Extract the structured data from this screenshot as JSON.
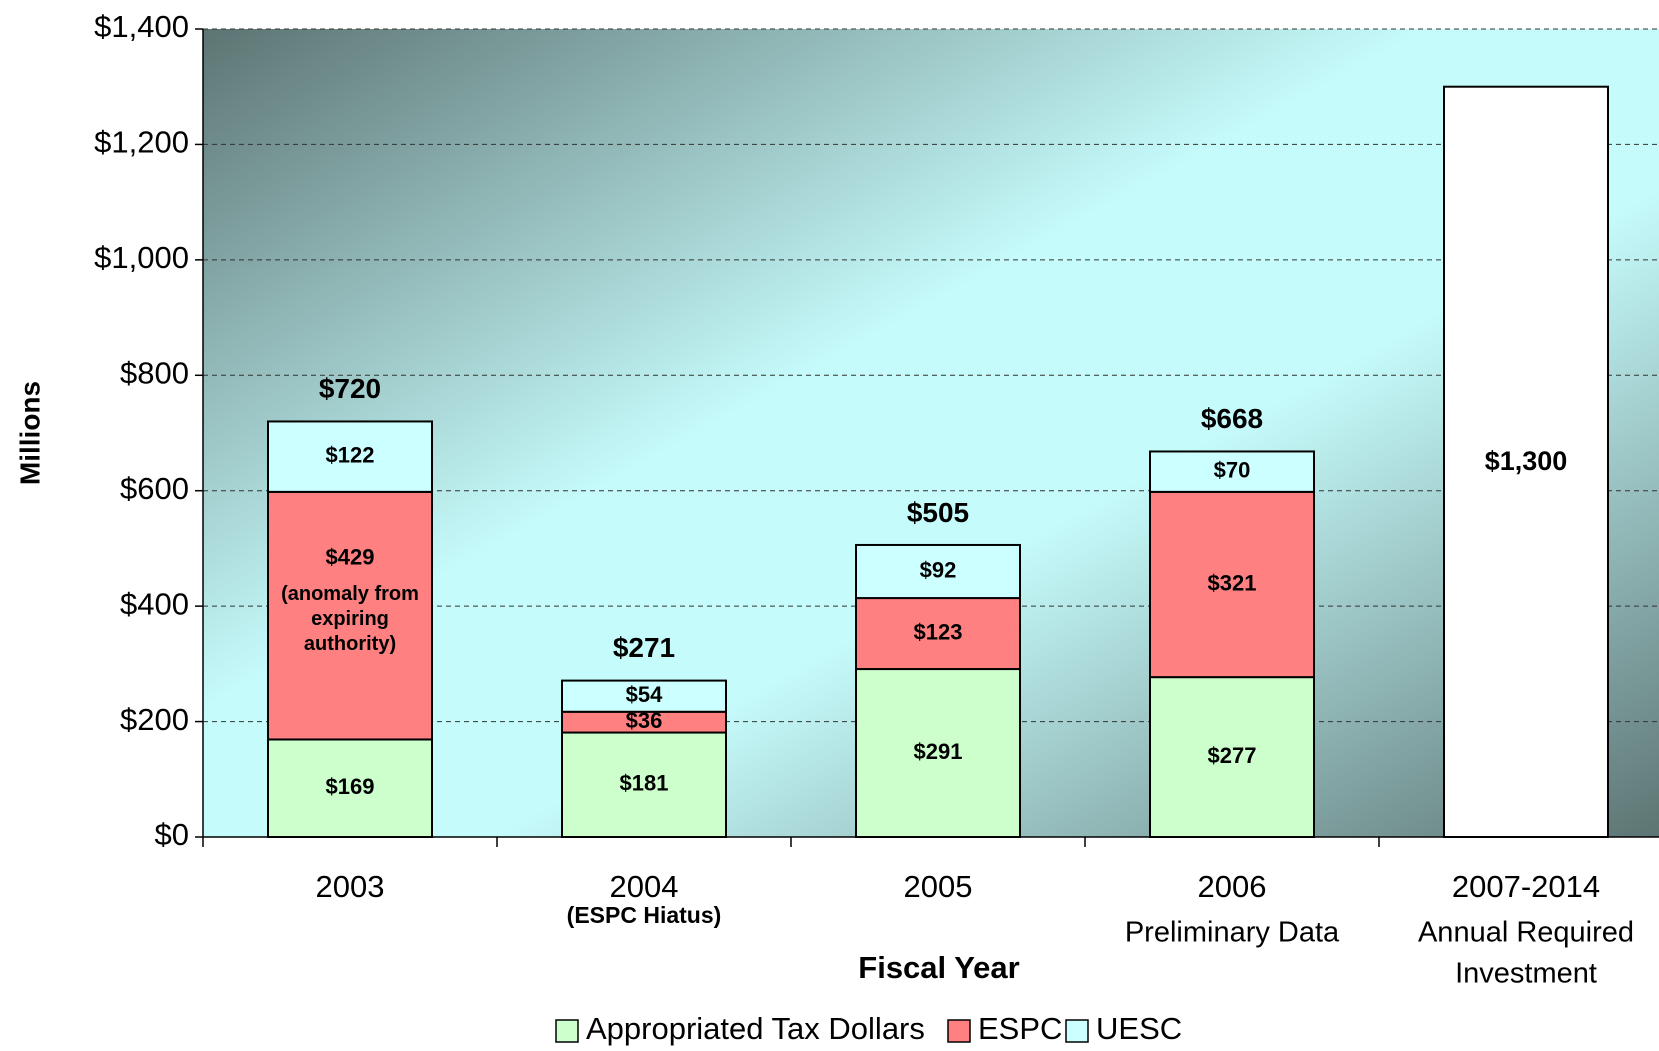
{
  "chart_data": {
    "type": "stacked_bar",
    "y_axis_label": "Millions",
    "x_axis_label": "Fiscal Year",
    "categories": [
      "2003",
      "2004",
      "2005",
      "2006",
      "2007-2014"
    ],
    "x_sublabels": [
      [],
      [
        "(ESPC Hiatus)"
      ],
      [],
      [
        "Preliminary Data"
      ],
      [
        "Annual Required",
        "Investment"
      ]
    ],
    "series": [
      {
        "name": "Appropriated Tax Dollars",
        "color": "#ccffcc",
        "values": [
          169,
          181,
          291,
          277,
          null
        ],
        "value_labels": [
          "$169",
          "$181",
          "$291",
          "$277",
          null
        ]
      },
      {
        "name": "ESPC",
        "color": "#ff8080",
        "values": [
          429,
          36,
          123,
          321,
          null
        ],
        "value_labels": [
          "$429",
          "$36",
          "$123",
          "$321",
          null
        ]
      },
      {
        "name": "UESC",
        "color": "#ccffff",
        "values": [
          122,
          54,
          92,
          70,
          null
        ],
        "value_labels": [
          "$122",
          "$54",
          "$92",
          "$70",
          null
        ]
      }
    ],
    "required_investment": {
      "color": "#ffffff",
      "values": [
        null,
        null,
        null,
        null,
        1300
      ],
      "value_labels": [
        null,
        null,
        null,
        null,
        "$1,300"
      ]
    },
    "totals": [
      720,
      271,
      505,
      668,
      null
    ],
    "total_labels": [
      "$720",
      "$271",
      "$505",
      "$668",
      null
    ],
    "annotation_lines": [
      "(anomaly from",
      "expiring",
      "authority)"
    ],
    "ylim": [
      0,
      1400
    ],
    "yticks": [
      {
        "value": 0,
        "label": "$0"
      },
      {
        "value": 200,
        "label": "$200"
      },
      {
        "value": 400,
        "label": "$400"
      },
      {
        "value": 600,
        "label": "$600"
      },
      {
        "value": 800,
        "label": "$800"
      },
      {
        "value": 1000,
        "label": "$1,000"
      },
      {
        "value": 1200,
        "label": "$1,200"
      },
      {
        "value": 1400,
        "label": "$1,400"
      }
    ],
    "grid": true,
    "legend": "bottom"
  }
}
